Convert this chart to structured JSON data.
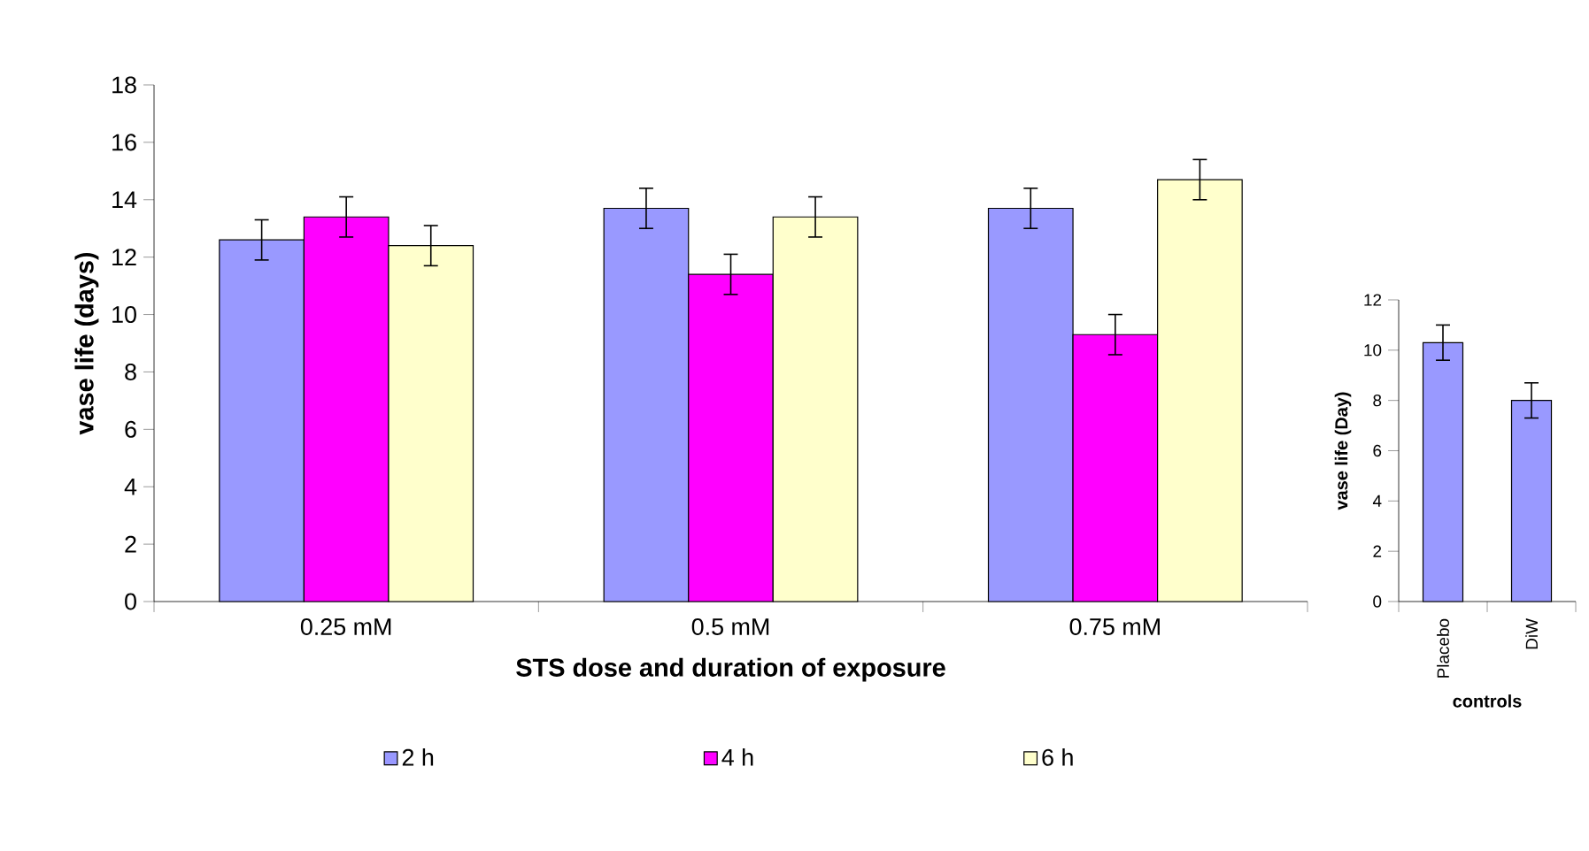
{
  "chart_data": [
    {
      "type": "bar",
      "xlabel": "STS dose and duration of exposure",
      "ylabel": "vase life (days)",
      "categories": [
        "0.25 mM",
        "0.5 mM",
        "0.75 mM"
      ],
      "series": [
        {
          "name": "2 h",
          "color": "#9999ff",
          "values": [
            12.6,
            13.7,
            13.7
          ],
          "errors": [
            0.7,
            0.7,
            0.7
          ]
        },
        {
          "name": "4 h",
          "color": "#ff00ff",
          "values": [
            13.4,
            11.4,
            9.3
          ],
          "errors": [
            0.7,
            0.7,
            0.7
          ]
        },
        {
          "name": "6 h",
          "color": "#ffffcc",
          "values": [
            12.4,
            13.4,
            14.7
          ],
          "errors": [
            0.7,
            0.7,
            0.7
          ]
        }
      ],
      "ylim": [
        0,
        18
      ],
      "yticks": [
        0,
        2,
        4,
        6,
        8,
        10,
        12,
        14,
        16,
        18
      ],
      "legend": "bottom",
      "grid": false
    },
    {
      "type": "bar",
      "xlabel": "controls",
      "ylabel": "vase life (Day)",
      "categories": [
        "Placebo",
        "DiW"
      ],
      "values": [
        10.3,
        8.0
      ],
      "errors": [
        0.7,
        0.7
      ],
      "color": "#9999ff",
      "ylim": [
        0,
        12
      ],
      "yticks": [
        0,
        2,
        4,
        6,
        8,
        10,
        12
      ],
      "grid": false
    }
  ]
}
